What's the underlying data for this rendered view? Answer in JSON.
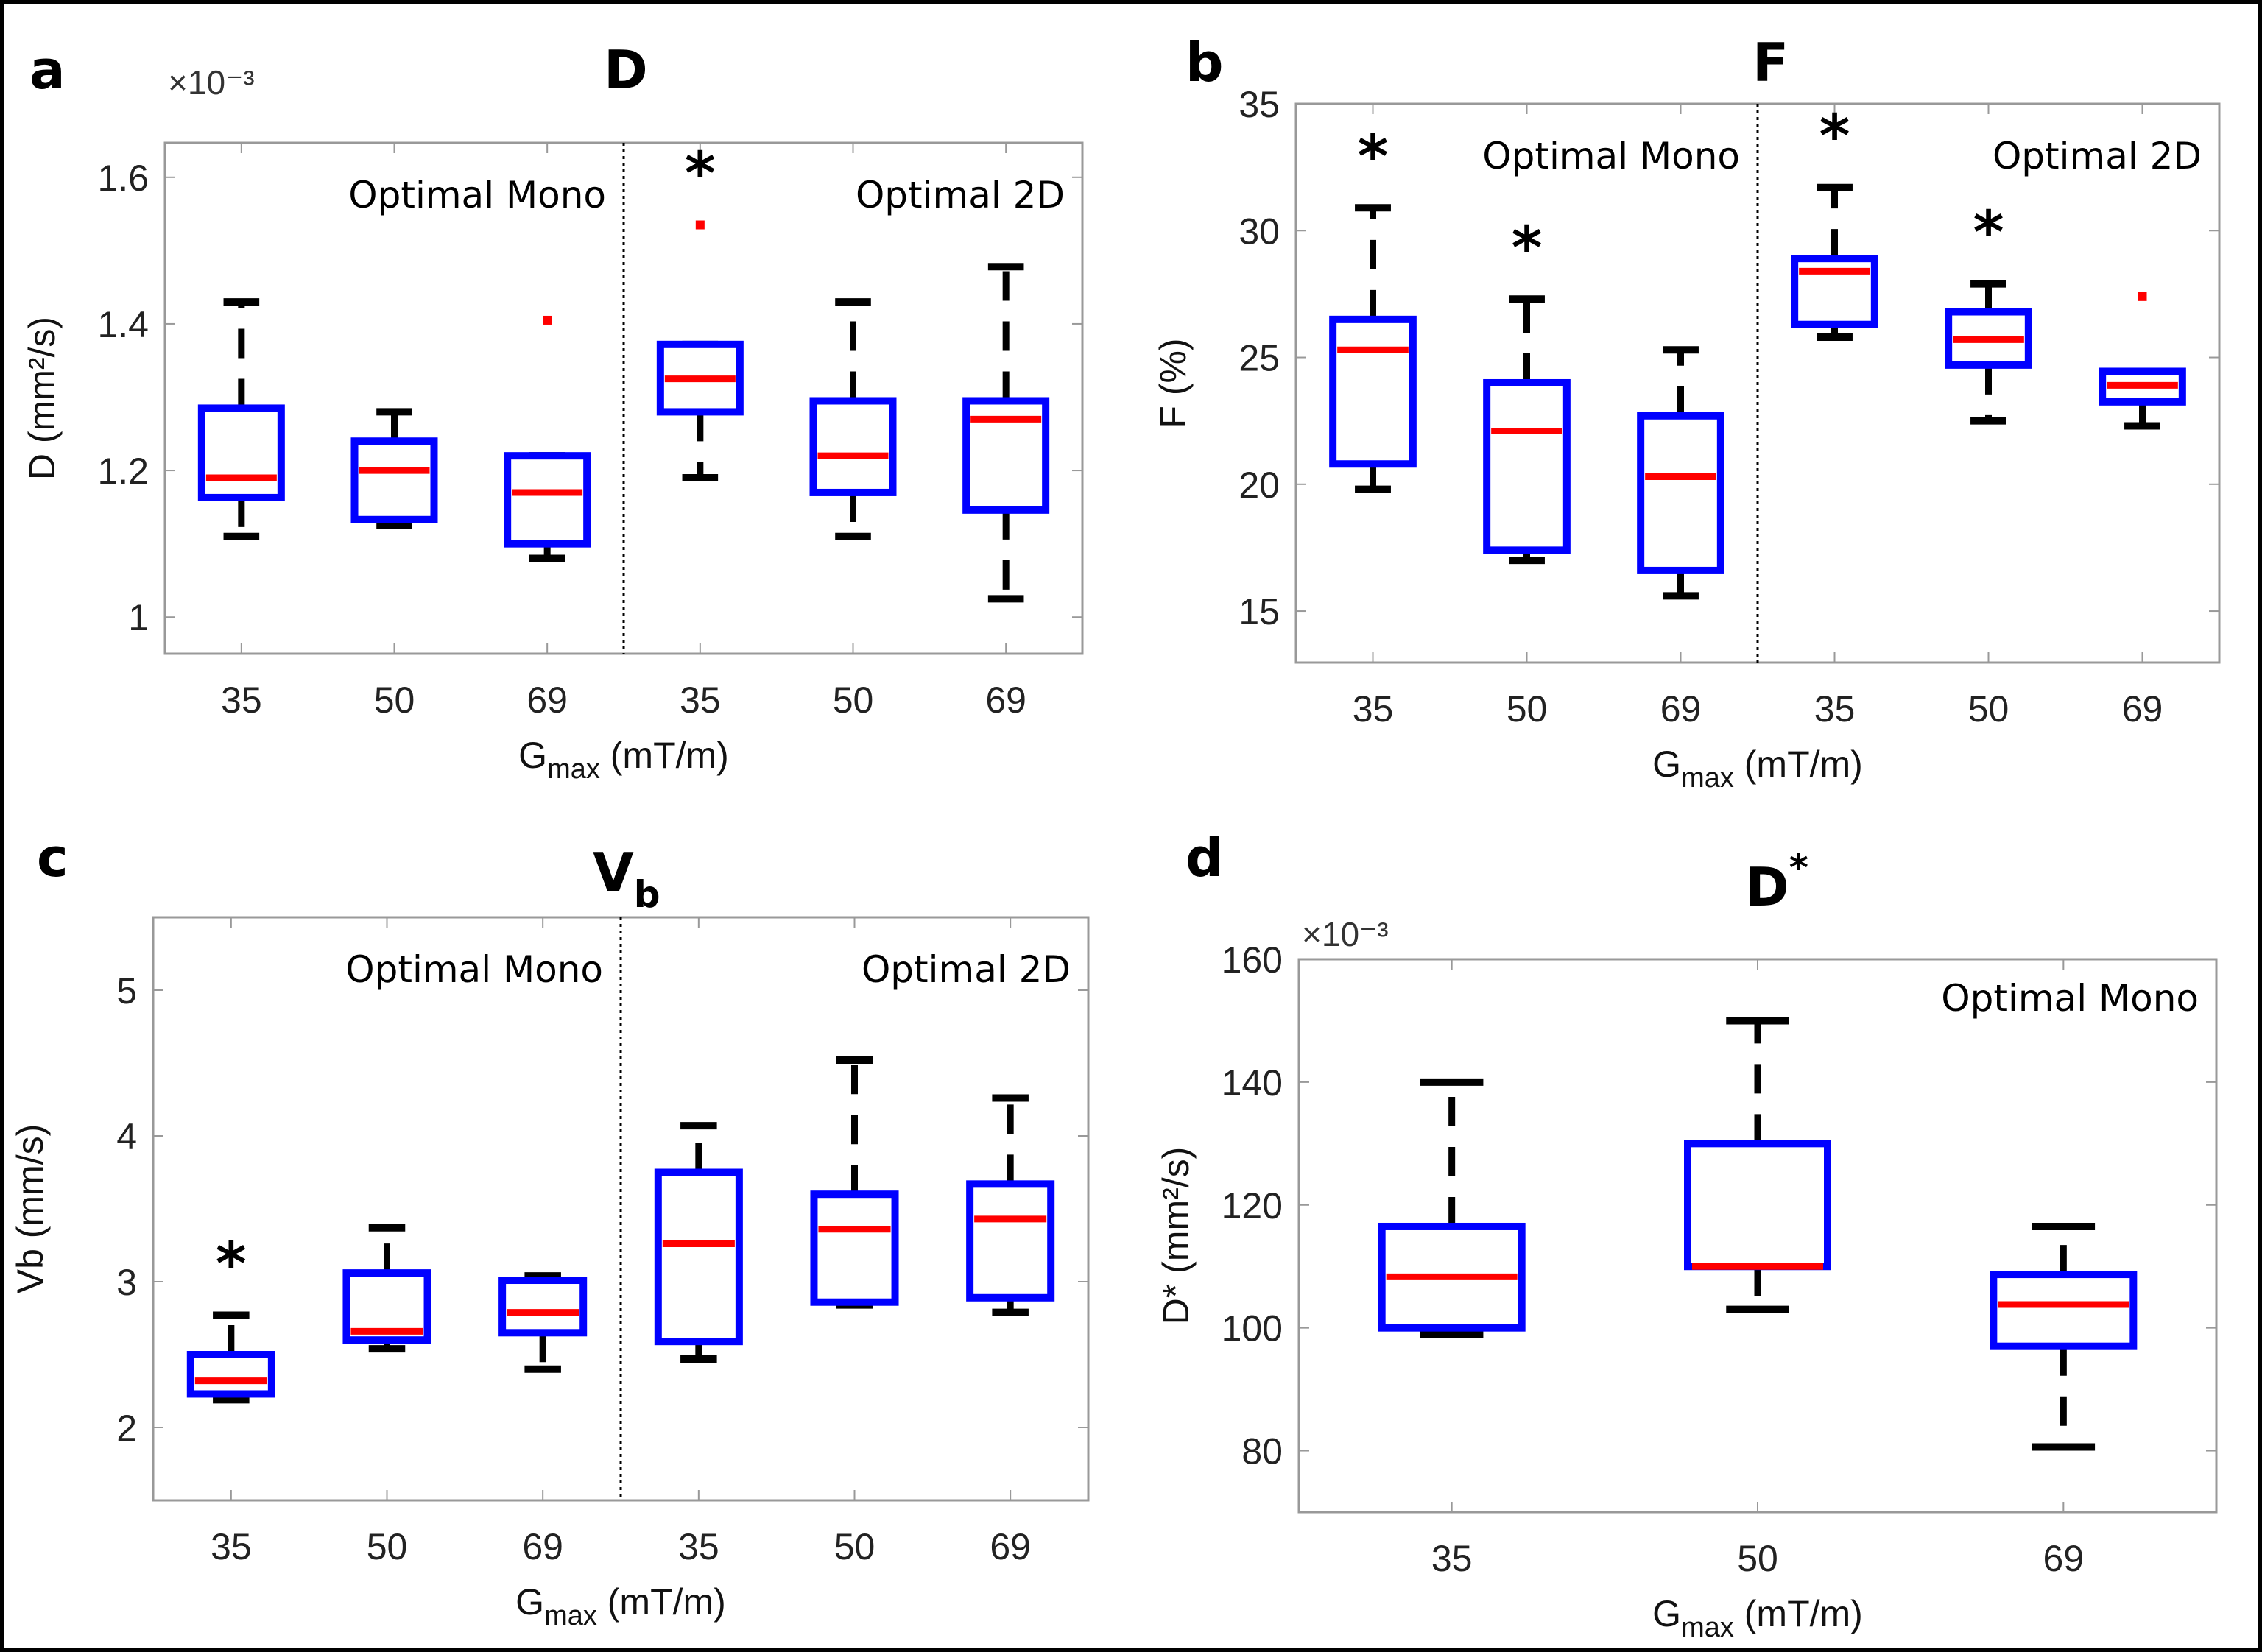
{
  "figure": {
    "xlabel_main": "G",
    "xlabel_sub": "max",
    "xlabel_unit": " (mT/m)",
    "box_color": "#0000ff",
    "median_color": "#ff0000",
    "whisker_color": "#000000",
    "outlier_color": "#ff0000"
  },
  "chart_data": [
    {
      "id": "a",
      "type": "box",
      "panel_letter": "a",
      "title": "D",
      "title_sup": "",
      "title_sub": "",
      "ylabel": "D (mm²/s)",
      "y_exponent": "×10⁻³",
      "ylim": [
        0.95,
        1.647
      ],
      "yticks": [
        1.0,
        1.2,
        1.4,
        1.6
      ],
      "ytick_labels": [
        "1",
        "1.2",
        "1.4",
        "1.6"
      ],
      "categories": [
        "35",
        "50",
        "69",
        "35",
        "50",
        "69"
      ],
      "groups": [
        "Optimal Mono",
        "Optimal 2D"
      ],
      "xlabel": "Gmax (mT/m)",
      "boxes": [
        {
          "group": "Optimal Mono",
          "category": "35",
          "lower": 1.11,
          "q1": 1.163,
          "median": 1.19,
          "q3": 1.285,
          "upper": 1.43,
          "outliers": [],
          "significant": false
        },
        {
          "group": "Optimal Mono",
          "category": "50",
          "lower": 1.125,
          "q1": 1.133,
          "median": 1.2,
          "q3": 1.24,
          "upper": 1.28,
          "outliers": [],
          "significant": false
        },
        {
          "group": "Optimal Mono",
          "category": "69",
          "lower": 1.08,
          "q1": 1.1,
          "median": 1.17,
          "q3": 1.22,
          "upper": 1.22,
          "outliers": [
            1.405
          ],
          "significant": false
        },
        {
          "group": "Optimal 2D",
          "category": "35",
          "lower": 1.19,
          "q1": 1.28,
          "median": 1.325,
          "q3": 1.372,
          "upper": 1.372,
          "outliers": [
            1.535
          ],
          "significant": true
        },
        {
          "group": "Optimal 2D",
          "category": "50",
          "lower": 1.11,
          "q1": 1.17,
          "median": 1.22,
          "q3": 1.295,
          "upper": 1.43,
          "outliers": [],
          "significant": false
        },
        {
          "group": "Optimal 2D",
          "category": "69",
          "lower": 1.025,
          "q1": 1.146,
          "median": 1.27,
          "q3": 1.295,
          "upper": 1.478,
          "outliers": [],
          "significant": false
        }
      ]
    },
    {
      "id": "b",
      "type": "box",
      "panel_letter": "b",
      "title": "F",
      "title_sup": "",
      "title_sub": "",
      "ylabel": "F (%)",
      "y_exponent": "",
      "ylim": [
        12.97,
        35
      ],
      "yticks": [
        15,
        20,
        25,
        30,
        35
      ],
      "ytick_labels": [
        "15",
        "20",
        "25",
        "30",
        "35"
      ],
      "categories": [
        "35",
        "50",
        "69",
        "35",
        "50",
        "69"
      ],
      "groups": [
        "Optimal Mono",
        "Optimal 2D"
      ],
      "xlabel": "Gmax (mT/m)",
      "boxes": [
        {
          "group": "Optimal Mono",
          "category": "35",
          "lower": 19.8,
          "q1": 20.8,
          "median": 25.3,
          "q3": 26.5,
          "upper": 30.9,
          "outliers": [],
          "significant": true
        },
        {
          "group": "Optimal Mono",
          "category": "50",
          "lower": 17.0,
          "q1": 17.4,
          "median": 22.1,
          "q3": 24.0,
          "upper": 27.3,
          "outliers": [],
          "significant": true
        },
        {
          "group": "Optimal Mono",
          "category": "69",
          "lower": 15.6,
          "q1": 16.6,
          "median": 20.3,
          "q3": 22.7,
          "upper": 25.3,
          "outliers": [],
          "significant": false
        },
        {
          "group": "Optimal 2D",
          "category": "35",
          "lower": 25.8,
          "q1": 26.3,
          "median": 28.4,
          "q3": 28.9,
          "upper": 31.7,
          "outliers": [],
          "significant": true
        },
        {
          "group": "Optimal 2D",
          "category": "50",
          "lower": 22.5,
          "q1": 24.7,
          "median": 25.7,
          "q3": 26.8,
          "upper": 27.9,
          "outliers": [],
          "significant": true
        },
        {
          "group": "Optimal 2D",
          "category": "69",
          "lower": 22.3,
          "q1": 23.25,
          "median": 23.9,
          "q3": 24.45,
          "upper": 24.45,
          "outliers": [
            27.4
          ],
          "significant": false
        }
      ]
    },
    {
      "id": "c",
      "type": "box",
      "panel_letter": "c",
      "title": "V",
      "title_sup": "",
      "title_sub": "b",
      "ylabel": "Vb (mm/s)",
      "y_exponent": "",
      "ylim": [
        1.5,
        5.5
      ],
      "yticks": [
        2,
        3,
        4,
        5
      ],
      "ytick_labels": [
        "2",
        "3",
        "4",
        "5"
      ],
      "categories": [
        "35",
        "50",
        "69",
        "35",
        "50",
        "69"
      ],
      "groups": [
        "Optimal Mono",
        "Optimal 2D"
      ],
      "xlabel": "Gmax (mT/m)",
      "boxes": [
        {
          "group": "Optimal Mono",
          "category": "35",
          "lower": 2.19,
          "q1": 2.23,
          "median": 2.32,
          "q3": 2.5,
          "upper": 2.77,
          "outliers": [],
          "significant": true
        },
        {
          "group": "Optimal Mono",
          "category": "50",
          "lower": 2.54,
          "q1": 2.6,
          "median": 2.66,
          "q3": 3.06,
          "upper": 3.37,
          "outliers": [],
          "significant": false
        },
        {
          "group": "Optimal Mono",
          "category": "69",
          "lower": 2.4,
          "q1": 2.65,
          "median": 2.79,
          "q3": 3.01,
          "upper": 3.04,
          "outliers": [],
          "significant": false
        },
        {
          "group": "Optimal 2D",
          "category": "35",
          "lower": 2.47,
          "q1": 2.59,
          "median": 3.26,
          "q3": 3.75,
          "upper": 4.07,
          "outliers": [],
          "significant": false
        },
        {
          "group": "Optimal 2D",
          "category": "50",
          "lower": 2.84,
          "q1": 2.86,
          "median": 3.36,
          "q3": 3.6,
          "upper": 4.52,
          "outliers": [],
          "significant": false
        },
        {
          "group": "Optimal 2D",
          "category": "69",
          "lower": 2.79,
          "q1": 2.89,
          "median": 3.43,
          "q3": 3.67,
          "upper": 4.26,
          "outliers": [],
          "significant": false
        }
      ]
    },
    {
      "id": "d",
      "type": "box",
      "panel_letter": "d",
      "title": "D",
      "title_sup": "*",
      "title_sub": "",
      "ylabel": "D* (mm²/s)",
      "y_exponent": "×10⁻³",
      "ylim": [
        70,
        160
      ],
      "yticks": [
        80,
        100,
        120,
        140,
        160
      ],
      "ytick_labels": [
        "80",
        "100",
        "120",
        "140",
        "160"
      ],
      "categories": [
        "35",
        "50",
        "69"
      ],
      "groups": [
        "Optimal Mono"
      ],
      "xlabel": "Gmax (mT/m)",
      "boxes": [
        {
          "group": "Optimal Mono",
          "category": "35",
          "lower": 99,
          "q1": 100,
          "median": 108.3,
          "q3": 116.5,
          "upper": 140,
          "outliers": [],
          "significant": false
        },
        {
          "group": "Optimal Mono",
          "category": "50",
          "lower": 103,
          "q1": 110,
          "median": 110,
          "q3": 130,
          "upper": 150,
          "outliers": [],
          "significant": false
        },
        {
          "group": "Optimal Mono",
          "category": "69",
          "lower": 80.6,
          "q1": 97,
          "median": 103.8,
          "q3": 108.7,
          "upper": 116.5,
          "outliers": [],
          "significant": false
        }
      ]
    }
  ]
}
